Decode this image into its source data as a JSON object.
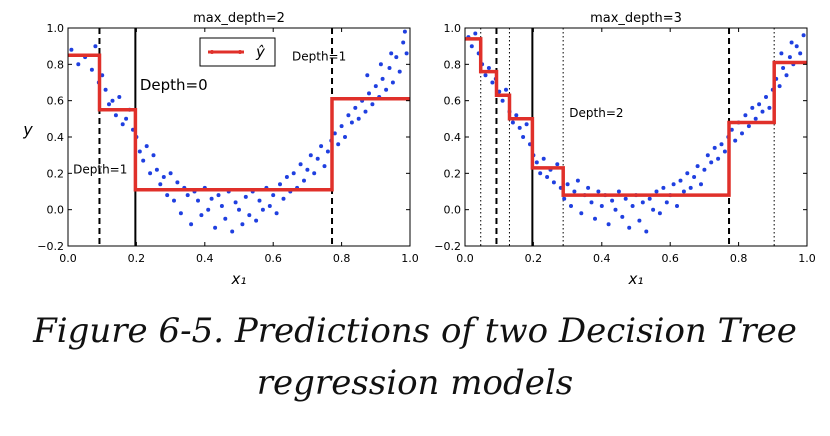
{
  "caption": {
    "line1": "Figure 6-5. Predictions of two Decision Tree",
    "line2": "regression models"
  },
  "colors": {
    "points": "#1f3fe0",
    "prediction": "#e0302a",
    "axes": "#000000"
  },
  "chart_data": [
    {
      "type": "scatter",
      "title": "max_depth=2",
      "xlabel": "x₁",
      "ylabel": "y",
      "xlim": [
        0.0,
        1.0
      ],
      "ylim": [
        -0.2,
        1.0
      ],
      "xticks": [
        "0.0",
        "0.2",
        "0.4",
        "0.6",
        "0.8",
        "1.0"
      ],
      "yticks": [
        "−0.2",
        "0.0",
        "0.2",
        "0.4",
        "0.6",
        "0.8",
        "1.0"
      ],
      "legend": {
        "label": "ŷ",
        "placement": "top-center"
      },
      "prediction": [
        {
          "x0": 0.0,
          "x1": 0.092,
          "y": 0.85
        },
        {
          "x0": 0.092,
          "x1": 0.197,
          "y": 0.55
        },
        {
          "x0": 0.197,
          "x1": 0.772,
          "y": 0.11
        },
        {
          "x0": 0.772,
          "x1": 1.0,
          "y": 0.61
        }
      ],
      "splits": [
        {
          "x": 0.197,
          "style": "solid"
        },
        {
          "x": 0.092,
          "style": "dashed"
        },
        {
          "x": 0.772,
          "style": "dashed"
        }
      ],
      "annotations": [
        {
          "text": "Depth=0",
          "x": 0.21,
          "y": 0.66,
          "size": "large"
        },
        {
          "text": "Depth=1",
          "x": 0.015,
          "y": 0.2,
          "size": "small"
        },
        {
          "text": "Depth=1",
          "x": 0.655,
          "y": 0.82,
          "size": "small"
        }
      ],
      "points": [
        [
          0.01,
          0.88
        ],
        [
          0.03,
          0.8
        ],
        [
          0.05,
          0.84
        ],
        [
          0.07,
          0.77
        ],
        [
          0.08,
          0.9
        ],
        [
          0.09,
          0.7
        ],
        [
          0.1,
          0.74
        ],
        [
          0.11,
          0.66
        ],
        [
          0.12,
          0.58
        ],
        [
          0.13,
          0.6
        ],
        [
          0.14,
          0.52
        ],
        [
          0.15,
          0.62
        ],
        [
          0.16,
          0.47
        ],
        [
          0.17,
          0.5
        ],
        [
          0.18,
          0.55
        ],
        [
          0.19,
          0.44
        ],
        [
          0.2,
          0.4
        ],
        [
          0.21,
          0.32
        ],
        [
          0.22,
          0.27
        ],
        [
          0.23,
          0.35
        ],
        [
          0.24,
          0.2
        ],
        [
          0.25,
          0.3
        ],
        [
          0.26,
          0.22
        ],
        [
          0.27,
          0.14
        ],
        [
          0.28,
          0.18
        ],
        [
          0.29,
          0.08
        ],
        [
          0.3,
          0.2
        ],
        [
          0.31,
          0.05
        ],
        [
          0.32,
          0.15
        ],
        [
          0.33,
          -0.02
        ],
        [
          0.34,
          0.12
        ],
        [
          0.35,
          0.08
        ],
        [
          0.36,
          -0.08
        ],
        [
          0.37,
          0.1
        ],
        [
          0.38,
          0.05
        ],
        [
          0.39,
          -0.03
        ],
        [
          0.4,
          0.12
        ],
        [
          0.41,
          0.0
        ],
        [
          0.42,
          0.06
        ],
        [
          0.43,
          -0.1
        ],
        [
          0.44,
          0.08
        ],
        [
          0.45,
          0.02
        ],
        [
          0.46,
          -0.05
        ],
        [
          0.47,
          0.1
        ],
        [
          0.48,
          -0.12
        ],
        [
          0.49,
          0.04
        ],
        [
          0.5,
          0.0
        ],
        [
          0.51,
          -0.08
        ],
        [
          0.52,
          0.07
        ],
        [
          0.53,
          -0.03
        ],
        [
          0.54,
          0.1
        ],
        [
          0.55,
          -0.06
        ],
        [
          0.56,
          0.05
        ],
        [
          0.57,
          0.0
        ],
        [
          0.58,
          0.12
        ],
        [
          0.59,
          0.02
        ],
        [
          0.6,
          0.08
        ],
        [
          0.61,
          -0.02
        ],
        [
          0.62,
          0.14
        ],
        [
          0.63,
          0.06
        ],
        [
          0.64,
          0.18
        ],
        [
          0.65,
          0.1
        ],
        [
          0.66,
          0.2
        ],
        [
          0.67,
          0.12
        ],
        [
          0.68,
          0.25
        ],
        [
          0.69,
          0.16
        ],
        [
          0.7,
          0.22
        ],
        [
          0.71,
          0.3
        ],
        [
          0.72,
          0.2
        ],
        [
          0.73,
          0.28
        ],
        [
          0.74,
          0.35
        ],
        [
          0.75,
          0.24
        ],
        [
          0.76,
          0.32
        ],
        [
          0.77,
          0.38
        ],
        [
          0.78,
          0.42
        ],
        [
          0.79,
          0.36
        ],
        [
          0.8,
          0.46
        ],
        [
          0.81,
          0.4
        ],
        [
          0.82,
          0.52
        ],
        [
          0.83,
          0.48
        ],
        [
          0.84,
          0.56
        ],
        [
          0.85,
          0.5
        ],
        [
          0.86,
          0.6
        ],
        [
          0.87,
          0.54
        ],
        [
          0.88,
          0.64
        ],
        [
          0.89,
          0.58
        ],
        [
          0.9,
          0.68
        ],
        [
          0.91,
          0.62
        ],
        [
          0.92,
          0.72
        ],
        [
          0.93,
          0.66
        ],
        [
          0.94,
          0.78
        ],
        [
          0.95,
          0.7
        ],
        [
          0.96,
          0.84
        ],
        [
          0.97,
          0.76
        ],
        [
          0.98,
          0.92
        ],
        [
          0.99,
          0.86
        ],
        [
          0.985,
          0.98
        ],
        [
          0.945,
          0.86
        ],
        [
          0.915,
          0.8
        ],
        [
          0.875,
          0.74
        ]
      ]
    },
    {
      "type": "scatter",
      "title": "max_depth=3",
      "xlabel": "x₁",
      "ylabel": "",
      "xlim": [
        0.0,
        1.0
      ],
      "ylim": [
        -0.2,
        1.0
      ],
      "xticks": [
        "0.0",
        "0.2",
        "0.4",
        "0.6",
        "0.8",
        "1.0"
      ],
      "yticks": [
        "−0.2",
        "0.0",
        "0.2",
        "0.4",
        "0.6",
        "0.8",
        "1.0"
      ],
      "prediction": [
        {
          "x0": 0.0,
          "x1": 0.046,
          "y": 0.94
        },
        {
          "x0": 0.046,
          "x1": 0.092,
          "y": 0.76
        },
        {
          "x0": 0.092,
          "x1": 0.13,
          "y": 0.63
        },
        {
          "x0": 0.13,
          "x1": 0.197,
          "y": 0.5
        },
        {
          "x0": 0.197,
          "x1": 0.287,
          "y": 0.23
        },
        {
          "x0": 0.287,
          "x1": 0.772,
          "y": 0.08
        },
        {
          "x0": 0.772,
          "x1": 0.904,
          "y": 0.48
        },
        {
          "x0": 0.904,
          "x1": 1.0,
          "y": 0.81
        }
      ],
      "splits": [
        {
          "x": 0.197,
          "style": "solid"
        },
        {
          "x": 0.092,
          "style": "dashed"
        },
        {
          "x": 0.772,
          "style": "dashed"
        },
        {
          "x": 0.046,
          "style": "dotted"
        },
        {
          "x": 0.13,
          "style": "dotted"
        },
        {
          "x": 0.287,
          "style": "dotted"
        },
        {
          "x": 0.904,
          "style": "dotted"
        }
      ],
      "annotations": [
        {
          "text": "Depth=2",
          "x": 0.305,
          "y": 0.51,
          "size": "small"
        }
      ],
      "points": [
        [
          0.01,
          0.95
        ],
        [
          0.02,
          0.9
        ],
        [
          0.03,
          0.97
        ],
        [
          0.04,
          0.86
        ],
        [
          0.05,
          0.8
        ],
        [
          0.06,
          0.74
        ],
        [
          0.07,
          0.78
        ],
        [
          0.08,
          0.7
        ],
        [
          0.09,
          0.72
        ],
        [
          0.1,
          0.65
        ],
        [
          0.11,
          0.6
        ],
        [
          0.12,
          0.66
        ],
        [
          0.13,
          0.54
        ],
        [
          0.14,
          0.48
        ],
        [
          0.15,
          0.52
        ],
        [
          0.16,
          0.45
        ],
        [
          0.17,
          0.4
        ],
        [
          0.18,
          0.47
        ],
        [
          0.19,
          0.36
        ],
        [
          0.2,
          0.3
        ],
        [
          0.21,
          0.26
        ],
        [
          0.22,
          0.2
        ],
        [
          0.23,
          0.28
        ],
        [
          0.24,
          0.18
        ],
        [
          0.25,
          0.22
        ],
        [
          0.26,
          0.15
        ],
        [
          0.27,
          0.25
        ],
        [
          0.28,
          0.12
        ],
        [
          0.29,
          0.06
        ],
        [
          0.3,
          0.14
        ],
        [
          0.31,
          0.02
        ],
        [
          0.32,
          0.1
        ],
        [
          0.33,
          0.16
        ],
        [
          0.34,
          -0.02
        ],
        [
          0.35,
          0.08
        ],
        [
          0.36,
          0.12
        ],
        [
          0.37,
          0.04
        ],
        [
          0.38,
          -0.05
        ],
        [
          0.39,
          0.1
        ],
        [
          0.4,
          0.02
        ],
        [
          0.41,
          0.08
        ],
        [
          0.42,
          -0.08
        ],
        [
          0.43,
          0.05
        ],
        [
          0.44,
          0.0
        ],
        [
          0.45,
          0.1
        ],
        [
          0.46,
          -0.04
        ],
        [
          0.47,
          0.06
        ],
        [
          0.48,
          -0.1
        ],
        [
          0.49,
          0.02
        ],
        [
          0.5,
          0.08
        ],
        [
          0.51,
          -0.06
        ],
        [
          0.52,
          0.04
        ],
        [
          0.53,
          -0.12
        ],
        [
          0.54,
          0.06
        ],
        [
          0.55,
          0.0
        ],
        [
          0.56,
          0.1
        ],
        [
          0.57,
          -0.02
        ],
        [
          0.58,
          0.12
        ],
        [
          0.59,
          0.04
        ],
        [
          0.6,
          0.08
        ],
        [
          0.61,
          0.14
        ],
        [
          0.62,
          0.02
        ],
        [
          0.63,
          0.16
        ],
        [
          0.64,
          0.1
        ],
        [
          0.65,
          0.2
        ],
        [
          0.66,
          0.12
        ],
        [
          0.67,
          0.18
        ],
        [
          0.68,
          0.24
        ],
        [
          0.69,
          0.14
        ],
        [
          0.7,
          0.22
        ],
        [
          0.71,
          0.3
        ],
        [
          0.72,
          0.26
        ],
        [
          0.73,
          0.34
        ],
        [
          0.74,
          0.28
        ],
        [
          0.75,
          0.36
        ],
        [
          0.76,
          0.32
        ],
        [
          0.77,
          0.4
        ],
        [
          0.78,
          0.44
        ],
        [
          0.79,
          0.38
        ],
        [
          0.8,
          0.48
        ],
        [
          0.81,
          0.42
        ],
        [
          0.82,
          0.52
        ],
        [
          0.83,
          0.46
        ],
        [
          0.84,
          0.56
        ],
        [
          0.85,
          0.5
        ],
        [
          0.86,
          0.58
        ],
        [
          0.87,
          0.54
        ],
        [
          0.88,
          0.62
        ],
        [
          0.89,
          0.56
        ],
        [
          0.9,
          0.66
        ],
        [
          0.91,
          0.72
        ],
        [
          0.92,
          0.68
        ],
        [
          0.93,
          0.78
        ],
        [
          0.94,
          0.74
        ],
        [
          0.95,
          0.84
        ],
        [
          0.96,
          0.8
        ],
        [
          0.97,
          0.9
        ],
        [
          0.98,
          0.86
        ],
        [
          0.99,
          0.96
        ],
        [
          0.955,
          0.92
        ],
        [
          0.925,
          0.86
        ]
      ]
    }
  ]
}
